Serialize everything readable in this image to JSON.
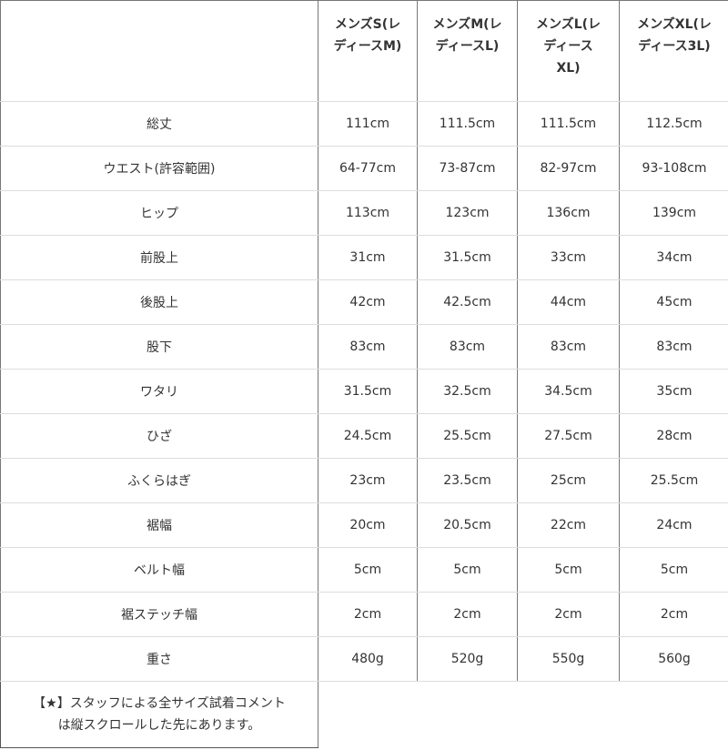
{
  "columns": [
    "メンズS(レディースM)",
    "メンズM(レディースL)",
    "メンズL(レディースXL)",
    "メンズXL(レディース3L)"
  ],
  "column_lines": [
    [
      "メンズS(レ",
      "ディースM)"
    ],
    [
      "メンズM(レ",
      "ディースL)"
    ],
    [
      "メンズL(レ",
      "ディース",
      "XL)"
    ],
    [
      "メンズXL(レ",
      "ディース3L)"
    ]
  ],
  "rows": [
    {
      "label": "総丈",
      "values": [
        "111cm",
        "111.5cm",
        "111.5cm",
        "112.5cm"
      ]
    },
    {
      "label": "ウエスト(許容範囲)",
      "values": [
        "64-77cm",
        "73-87cm",
        "82-97cm",
        "93-108cm"
      ]
    },
    {
      "label": "ヒップ",
      "values": [
        "113cm",
        "123cm",
        "136cm",
        "139cm"
      ]
    },
    {
      "label": "前股上",
      "values": [
        "31cm",
        "31.5cm",
        "33cm",
        "34cm"
      ]
    },
    {
      "label": "後股上",
      "values": [
        "42cm",
        "42.5cm",
        "44cm",
        "45cm"
      ]
    },
    {
      "label": "股下",
      "values": [
        "83cm",
        "83cm",
        "83cm",
        "83cm"
      ]
    },
    {
      "label": "ワタリ",
      "values": [
        "31.5cm",
        "32.5cm",
        "34.5cm",
        "35cm"
      ]
    },
    {
      "label": "ひざ",
      "values": [
        "24.5cm",
        "25.5cm",
        "27.5cm",
        "28cm"
      ]
    },
    {
      "label": "ふくらはぎ",
      "values": [
        "23cm",
        "23.5cm",
        "25cm",
        "25.5cm"
      ]
    },
    {
      "label": "裾幅",
      "values": [
        "20cm",
        "20.5cm",
        "22cm",
        "24cm"
      ]
    },
    {
      "label": "ベルト幅",
      "values": [
        "5cm",
        "5cm",
        "5cm",
        "5cm"
      ]
    },
    {
      "label": "裾ステッチ幅",
      "values": [
        "2cm",
        "2cm",
        "2cm",
        "2cm"
      ]
    },
    {
      "label": "重さ",
      "values": [
        "480g",
        "520g",
        "550g",
        "560g"
      ]
    }
  ],
  "note_lines": [
    "【★】スタッフによる全サイズ試着コメント",
    "は縦スクロールした先にあります。"
  ]
}
